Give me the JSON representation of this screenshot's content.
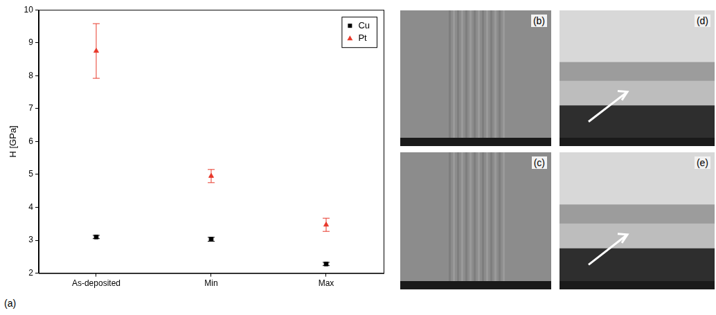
{
  "chart_data": {
    "type": "scatter",
    "y_label": "H [GPa]",
    "categories": [
      "As-deposited",
      "Min",
      "Max"
    ],
    "series": [
      {
        "name": "Cu",
        "color": "#000000",
        "marker": "square",
        "values": [
          3.1,
          3.03,
          2.28
        ],
        "errors": [
          0.05,
          0.06,
          0.05
        ]
      },
      {
        "name": "Pt",
        "color": "#e8392b",
        "marker": "triangle",
        "values": [
          8.75,
          4.95,
          3.47
        ],
        "errors": [
          0.83,
          0.2,
          0.2
        ]
      }
    ],
    "ylim": [
      2,
      10
    ],
    "yticks": [
      2,
      3,
      4,
      5,
      6,
      7,
      8,
      9,
      10
    ],
    "grid": false,
    "legend": "upper right"
  },
  "chart_label": "(a)",
  "images": [
    {
      "label": "(b)"
    },
    {
      "label": "(c)"
    },
    {
      "label": "(d)"
    },
    {
      "label": "(e)"
    }
  ]
}
